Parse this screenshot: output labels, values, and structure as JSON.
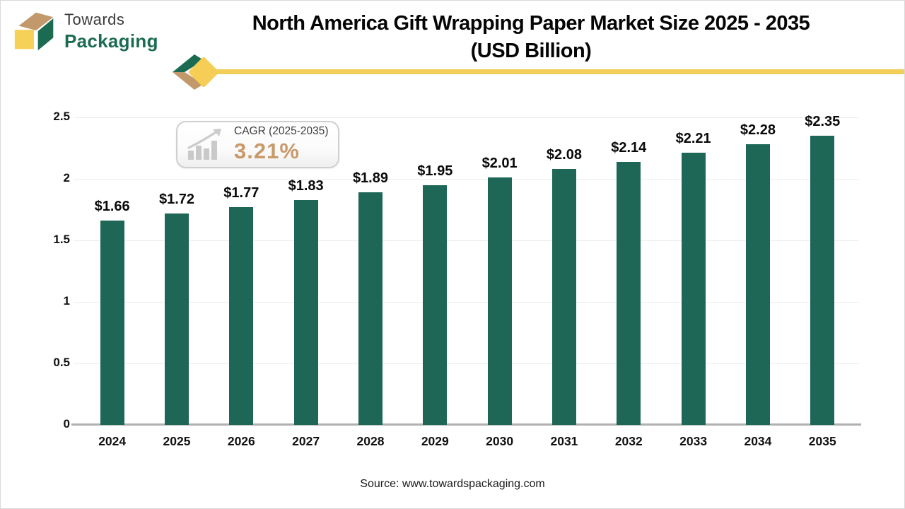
{
  "brand": {
    "name_line1": "Towards",
    "name_line2": "Packaging",
    "colors": {
      "green": "#1B6B52",
      "yellow": "#F6CE55",
      "tan": "#C1996B"
    }
  },
  "title": {
    "line1": "North America Gift Wrapping Paper Market Size 2025 - 2035",
    "line2": "(USD Billion)"
  },
  "cagr": {
    "label": "CAGR (2025-2035)",
    "value": "3.21%",
    "icon": "growth-bar-chart-icon",
    "value_color": "#C9996A"
  },
  "source": "Source: www.towardspackaging.com",
  "chart_data": {
    "type": "bar",
    "title": "North America Gift Wrapping Paper Market Size 2025 - 2035 (USD Billion)",
    "categories": [
      "2024",
      "2025",
      "2026",
      "2027",
      "2028",
      "2029",
      "2030",
      "2031",
      "2032",
      "2033",
      "2034",
      "2035"
    ],
    "values": [
      1.66,
      1.72,
      1.77,
      1.83,
      1.89,
      1.95,
      2.01,
      2.08,
      2.14,
      2.21,
      2.28,
      2.35
    ],
    "value_labels": [
      "$1.66",
      "$1.72",
      "$1.77",
      "$1.83",
      "$1.89",
      "$1.95",
      "$2.01",
      "$2.08",
      "$2.14",
      "$2.21",
      "$2.28",
      "$2.35"
    ],
    "xlabel": "",
    "ylabel": "",
    "ylim": [
      0,
      2.5
    ],
    "yticks": [
      0,
      0.5,
      1,
      1.5,
      2,
      2.5
    ],
    "ytick_labels": [
      "0",
      "0.5",
      "1",
      "1.5",
      "2",
      "2.5"
    ],
    "grid": true,
    "legend": false,
    "bar_color": "#1E6757"
  }
}
